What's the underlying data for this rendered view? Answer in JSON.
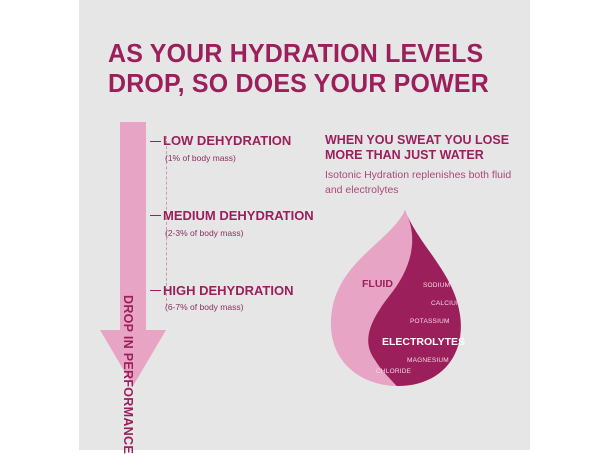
{
  "headline": [
    "AS YOUR HYDRATION LEVELS",
    "DROP, SO DOES YOUR POWER"
  ],
  "arrow_label": "DROP IN PERFORMANCE",
  "levels": [
    {
      "title": "LOW DEHYDRATION",
      "sub": "(1% of body mass)"
    },
    {
      "title": "MEDIUM DEHYDRATION",
      "sub": "(2-3% of body mass)"
    },
    {
      "title": "HIGH DEHYDRATION",
      "sub": "(6-7% of body mass)"
    }
  ],
  "sweat": {
    "title": [
      "WHEN YOU SWEAT YOU LOSE",
      "MORE THAN JUST WATER"
    ],
    "body": "Isotonic Hydration replenishes both fluid and electrolytes"
  },
  "drop": {
    "fluid_label": "FLUID",
    "electrolytes_label": "ELECTROLYTES",
    "minerals": [
      "SODIUM",
      "CALCIUM",
      "POTASSIUM",
      "MAGNESIUM",
      "CHLORIDE"
    ]
  },
  "colors": {
    "brand": "#9b1f5a",
    "pink_light": "#e8a4c4",
    "background": "#e6e6e6"
  }
}
